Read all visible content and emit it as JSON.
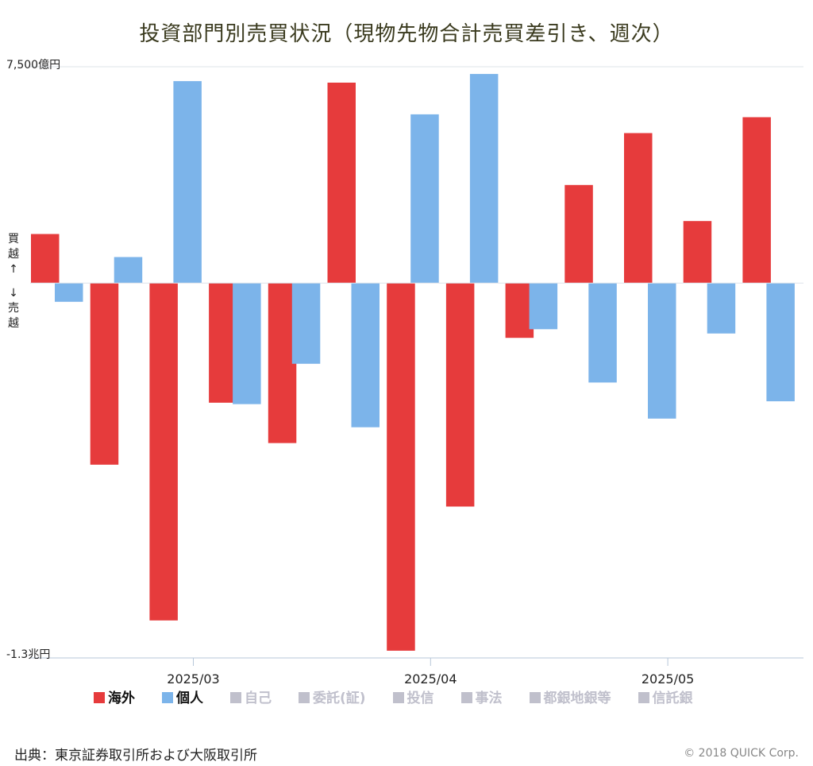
{
  "chart_data": {
    "type": "bar",
    "title": "投資部門別売買状況（現物先物合計売買差引き、週次）",
    "y_top_label": "7,500億円",
    "y_bottom_label": "-1.3兆円",
    "ylim": [
      -13000,
      7500
    ],
    "side_label_up": [
      "買",
      "越",
      "↑"
    ],
    "side_label_down": [
      "↓",
      "売",
      "越"
    ],
    "x_tick_labels": [
      "2025/03",
      "2025/04",
      "2025/05"
    ],
    "x_tick_positions": [
      2.5,
      6.5,
      10.5
    ],
    "series": [
      {
        "name": "海外",
        "color": "#e63b3c",
        "values": [
          1700,
          -6300,
          -11700,
          -4150,
          -5550,
          6950,
          -12750,
          -7750,
          -1900,
          3400,
          5200,
          2150,
          5750
        ]
      },
      {
        "name": "個人",
        "color": "#7cb4ea",
        "values": [
          -650,
          900,
          7000,
          -4200,
          -2800,
          -5000,
          5850,
          7250,
          -1600,
          -3450,
          -4700,
          -1750,
          -4100
        ]
      }
    ],
    "grid": false,
    "legend_position": "bottom-left"
  },
  "legend": [
    {
      "label": "海外",
      "color": "#e63b3c",
      "active": true
    },
    {
      "label": "個人",
      "color": "#7cb4ea",
      "active": true
    },
    {
      "label": "自己",
      "color": "#c0c0cc",
      "active": false
    },
    {
      "label": "委託(証)",
      "color": "#c0c0cc",
      "active": false
    },
    {
      "label": "投信",
      "color": "#c0c0cc",
      "active": false
    },
    {
      "label": "事法",
      "color": "#c0c0cc",
      "active": false
    },
    {
      "label": "都銀地銀等",
      "color": "#c0c0cc",
      "active": false
    },
    {
      "label": "信託銀",
      "color": "#c0c0cc",
      "active": false
    }
  ],
  "source": "出典：東京証券取引所および大阪取引所",
  "copyright": "© 2018 QUICK Corp."
}
